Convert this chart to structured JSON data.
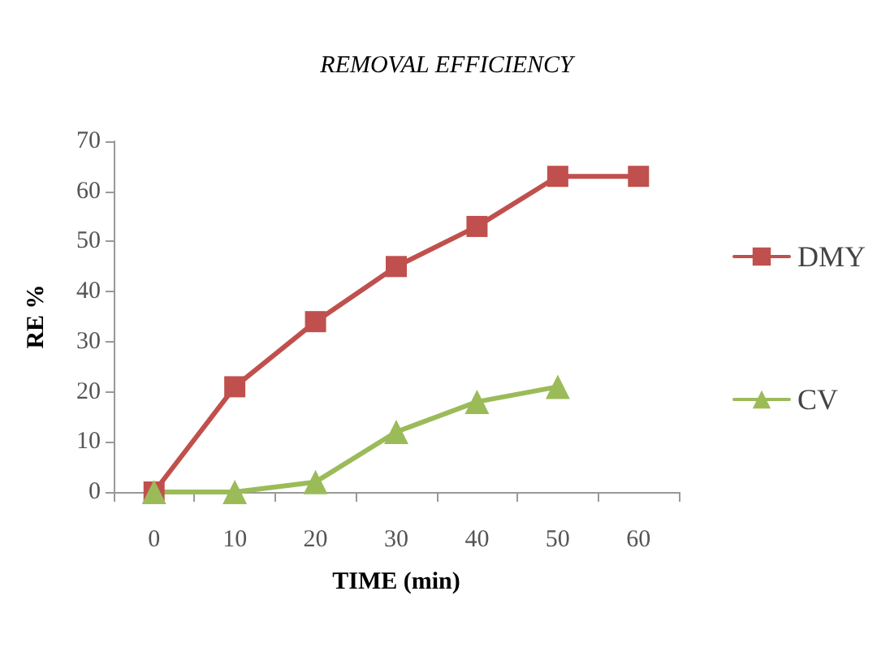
{
  "chart_data": {
    "type": "line",
    "title": "REMOVAL EFFICIENCY",
    "xlabel": "TIME (min)",
    "ylabel": "RE %",
    "categories": [
      "0",
      "10",
      "20",
      "30",
      "40",
      "50",
      "60"
    ],
    "series": [
      {
        "name": "DMY",
        "color": "#c0504d",
        "marker": "square",
        "values": [
          0,
          21,
          34,
          45,
          53,
          63,
          63
        ]
      },
      {
        "name": "CV",
        "color": "#9bbb59",
        "marker": "triangle",
        "values": [
          0,
          0,
          2,
          12,
          18,
          21,
          null
        ]
      }
    ],
    "ylim": [
      0,
      70
    ],
    "yticks": [
      0,
      10,
      20,
      30,
      40,
      50,
      60,
      70
    ],
    "grid": false,
    "legend": "right"
  }
}
